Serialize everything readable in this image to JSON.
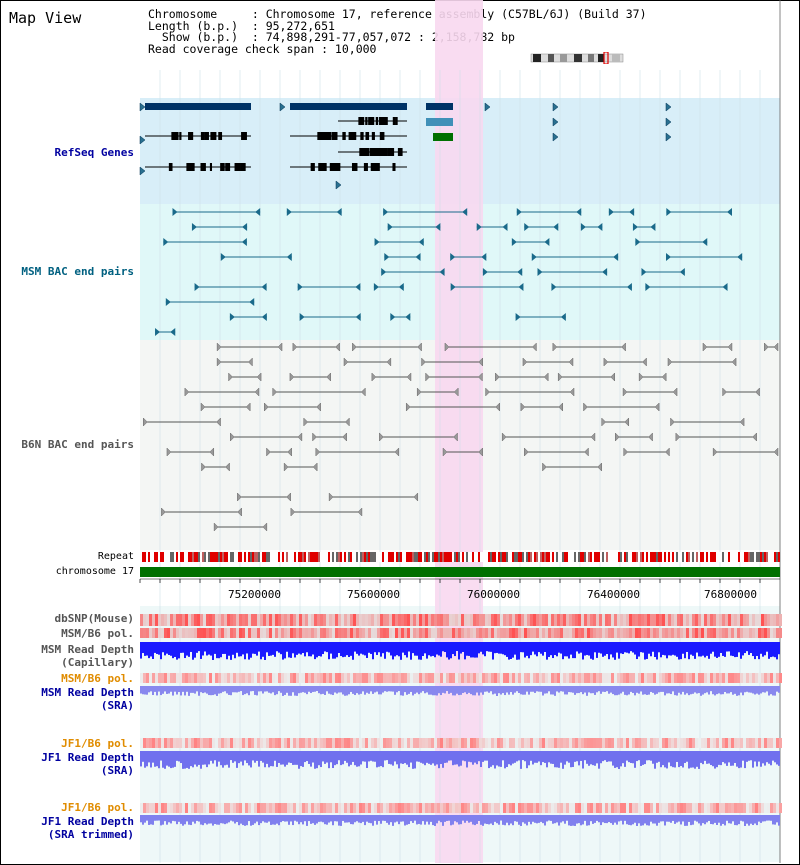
{
  "view": {
    "title": "Map View",
    "info_lines": [
      "Chromosome     : Chromosome 17, reference assembly (C57BL/6J) (Build 37)",
      "Length (b.p.)  : 95,272,651",
      "  Show (b.p.)  : 74,898,291-77,057,072 : 2,158,782 bp",
      "Read coverage check span : 10,000"
    ]
  },
  "tracks": {
    "refseq": "RefSeq Genes",
    "msm_bac": "MSM BAC end pairs",
    "b6n_bac": "B6N BAC end pairs",
    "repeat": "Repeat",
    "chromosome": "chromosome 17",
    "dbsnp": "dbSNP(Mouse)",
    "msm_b6_pol": "MSM/B6 pol.",
    "msm_depth_cap_1": "MSM Read Depth",
    "msm_depth_cap_2": "(Capillary)",
    "msm_b6_pol_sra": "MSM/B6 pol.",
    "msm_depth_sra_1": "MSM Read Depth",
    "msm_depth_sra_2": "(SRA)",
    "jf1_b6_pol": "JF1/B6 pol.",
    "jf1_depth_sra_1": "JF1 Read Depth",
    "jf1_depth_sra_2": "(SRA)",
    "jf1_b6_pol_2": "JF1/B6 pol.",
    "jf1_depth_trim_1": "JF1 Read Depth",
    "jf1_depth_trim_2": "(SRA trimmed)"
  },
  "axis": {
    "ticks": [
      "75200000",
      "75600000",
      "76000000",
      "76400000",
      "76800000"
    ]
  },
  "colors": {
    "highlight": "#f8d8f0",
    "refseq_bg": "#d8eef8",
    "msm_bg": "#e0f8f8",
    "b6n_bg": "#f4f6f4",
    "chromosome": "#007000",
    "navy": "#0000a0",
    "teal": "#006080",
    "orange": "#e08c00"
  }
}
